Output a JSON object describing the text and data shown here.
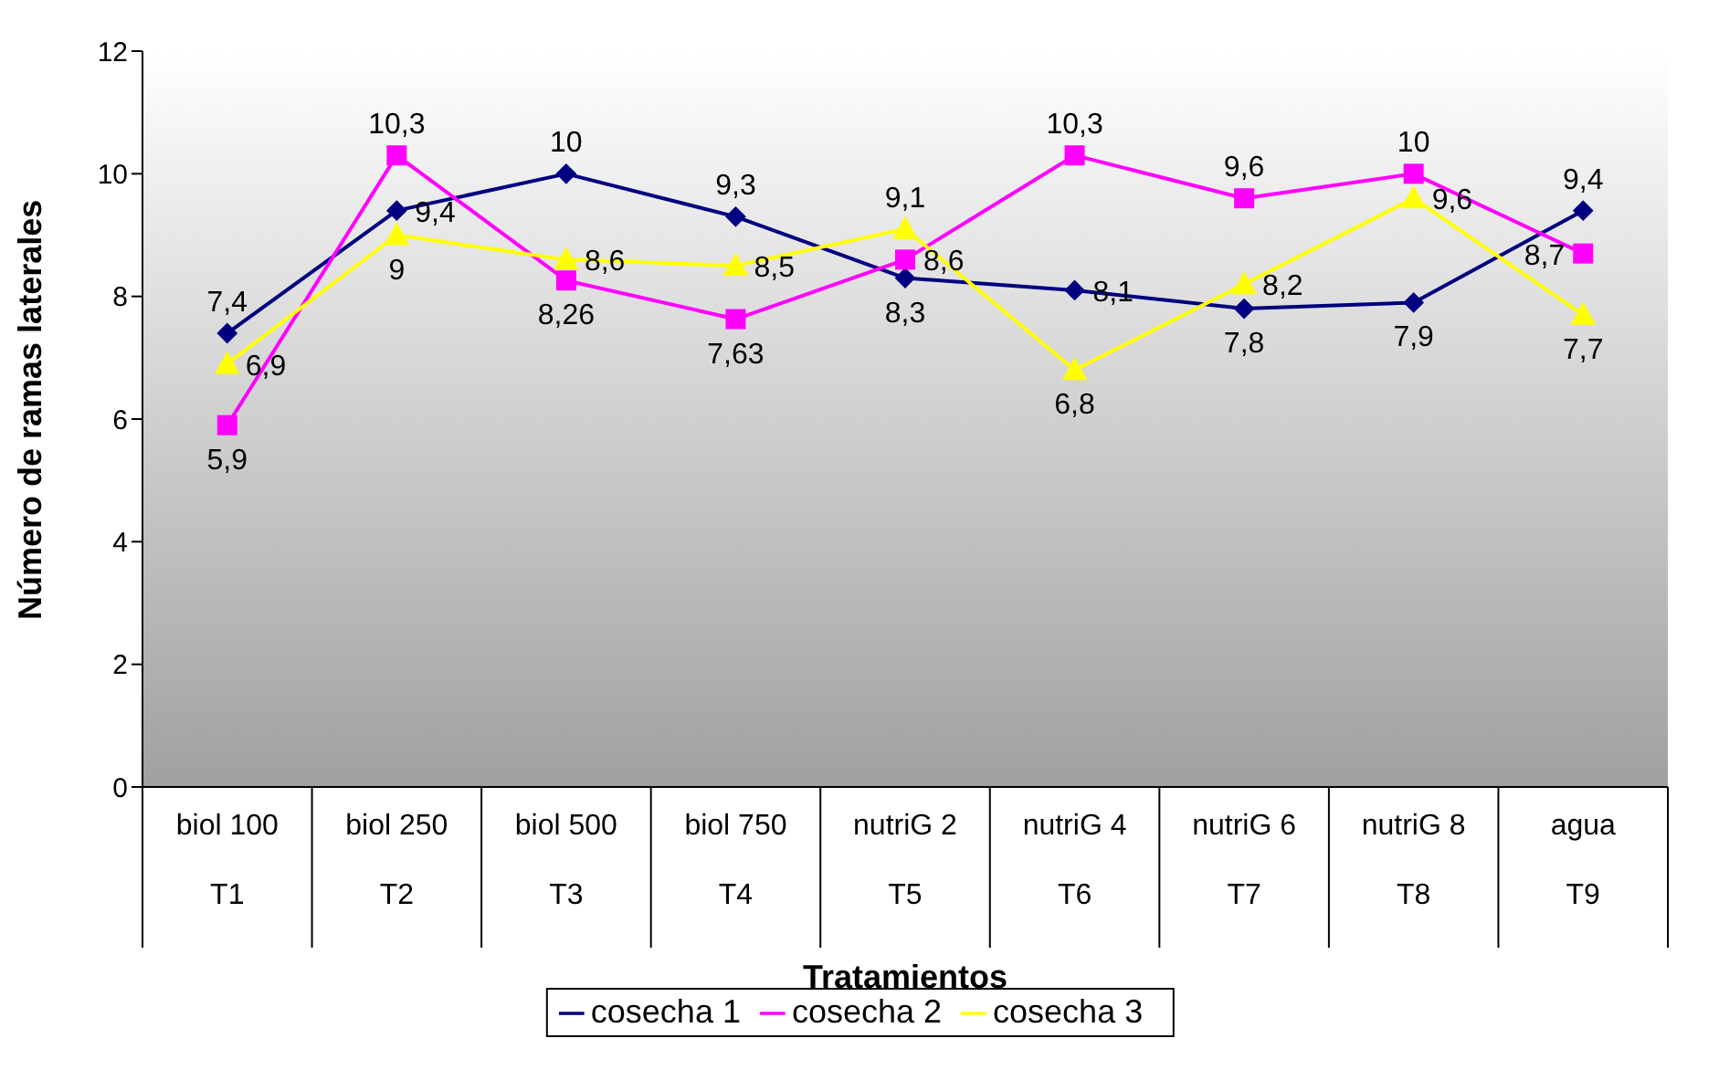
{
  "chart_data": {
    "type": "line",
    "xlabel": "Tratamientos",
    "ylabel": "Número de ramas laterales",
    "categories": [
      "biol 100\nT1",
      "biol 250\nT2",
      "biol 500\nT3",
      "biol 750\nT4",
      "nutriG 2\nT5",
      "nutriG 4\nT6",
      "nutriG 6\nT7",
      "nutriG 8\nT8",
      "agua\nT9"
    ],
    "series": [
      {
        "name": "cosecha 1",
        "color": "#000080",
        "marker": "diamond",
        "values": [
          7.4,
          9.4,
          10,
          9.3,
          8.3,
          8.1,
          7.8,
          7.9,
          9.4
        ],
        "value_labels": [
          "7,4",
          "9,4",
          "10",
          "9,3",
          "8,3",
          "8,1",
          "7,8",
          "7,9",
          "9,4"
        ]
      },
      {
        "name": "cosecha 2",
        "color": "#ff00ff",
        "marker": "square",
        "values": [
          5.9,
          10.3,
          8.26,
          7.63,
          8.6,
          10.3,
          9.6,
          10,
          8.7
        ],
        "value_labels": [
          "5,9",
          "10,3",
          "8,26",
          "7,63",
          "8,6",
          "10,3",
          "9,6",
          "10",
          "8,7"
        ]
      },
      {
        "name": "cosecha 3",
        "color": "#ffff00",
        "marker": "triangle",
        "values": [
          6.9,
          9,
          8.6,
          8.5,
          9.1,
          6.8,
          8.2,
          9.6,
          7.7
        ],
        "value_labels": [
          "6,9",
          "9",
          "8,6",
          "8,5",
          "9,1",
          "6,8",
          "8,2",
          "9,6",
          "7,7"
        ]
      }
    ],
    "ylim": [
      0,
      12
    ],
    "yticks": [
      0,
      2,
      4,
      6,
      8,
      10,
      12
    ],
    "grid": false,
    "legend": "bottom",
    "line_style": "solid"
  }
}
